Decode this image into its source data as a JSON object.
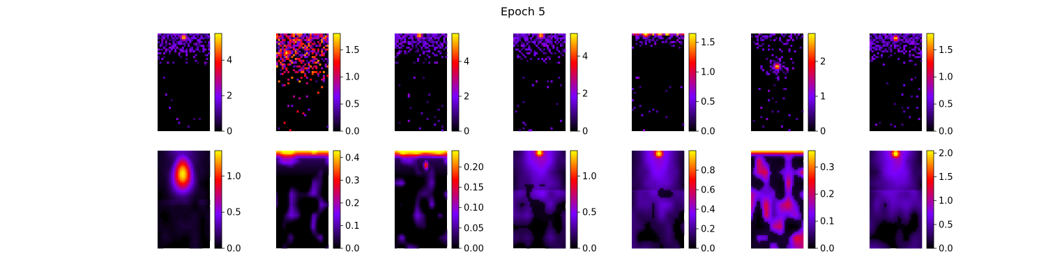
{
  "figure": {
    "title": "Epoch 5"
  },
  "colors": {
    "colormap": "gnuplot",
    "cmap_stops": [
      "#000000",
      "#7a00ff",
      "#ff0000",
      "#ffff00"
    ]
  },
  "chart_data": [
    {
      "type": "heatmap",
      "row": 1,
      "panel": 1,
      "pattern": "sparse",
      "hotspot": [
        0.5,
        0.04
      ],
      "cbar_ticks": [
        "0",
        "2",
        "4"
      ],
      "cbar_tick_values": [
        0,
        2,
        4
      ],
      "vmax": 5.5
    },
    {
      "type": "heatmap",
      "row": 1,
      "panel": 2,
      "pattern": "sparse-dense",
      "hotspot": [
        0.2,
        0.2
      ],
      "cbar_ticks": [
        "0.0",
        "0.5",
        "1.0",
        "1.5"
      ],
      "cbar_tick_values": [
        0,
        0.5,
        1.0,
        1.5
      ],
      "vmax": 1.8
    },
    {
      "type": "heatmap",
      "row": 1,
      "panel": 3,
      "pattern": "sparse",
      "hotspot": [
        0.47,
        0.02
      ],
      "cbar_ticks": [
        "0",
        "2",
        "4"
      ],
      "cbar_tick_values": [
        0,
        2,
        4
      ],
      "vmax": 5.6
    },
    {
      "type": "heatmap",
      "row": 1,
      "panel": 4,
      "pattern": "sparse",
      "hotspot": [
        0.53,
        0.02
      ],
      "cbar_ticks": [
        "0",
        "2",
        "4"
      ],
      "cbar_tick_values": [
        0,
        2,
        4
      ],
      "vmax": 5.2
    },
    {
      "type": "heatmap",
      "row": 1,
      "panel": 5,
      "pattern": "sparse-top",
      "hotspot": [
        0.27,
        0.01
      ],
      "cbar_ticks": [
        "0.0",
        "0.5",
        "1.0",
        "1.5"
      ],
      "cbar_tick_values": [
        0,
        0.5,
        1.0,
        1.5
      ],
      "vmax": 1.65
    },
    {
      "type": "heatmap",
      "row": 1,
      "panel": 6,
      "pattern": "sparse-mid",
      "hotspot": [
        0.5,
        0.34
      ],
      "cbar_ticks": [
        "0",
        "1",
        "2"
      ],
      "cbar_tick_values": [
        0,
        1,
        2
      ],
      "vmax": 2.8
    },
    {
      "type": "heatmap",
      "row": 1,
      "panel": 7,
      "pattern": "sparse",
      "hotspot": [
        0.5,
        0.05
      ],
      "cbar_ticks": [
        "0.0",
        "0.5",
        "1.0",
        "1.5"
      ],
      "cbar_tick_values": [
        0,
        0.5,
        1.0,
        1.5
      ],
      "vmax": 1.8
    },
    {
      "type": "heatmap",
      "row": 2,
      "panel": 1,
      "pattern": "plume",
      "hotspot": [
        0.48,
        0.24
      ],
      "cbar_ticks": [
        "0.0",
        "0.5",
        "1.0"
      ],
      "cbar_tick_values": [
        0,
        0.5,
        1.0
      ],
      "vmax": 1.35
    },
    {
      "type": "heatmap",
      "row": 2,
      "panel": 2,
      "pattern": "top-band",
      "hotspot": [
        0.5,
        0.0
      ],
      "cbar_ticks": [
        "0.0",
        "0.1",
        "0.2",
        "0.3",
        "0.4"
      ],
      "cbar_tick_values": [
        0,
        0.1,
        0.2,
        0.3,
        0.4
      ],
      "vmax": 0.43
    },
    {
      "type": "heatmap",
      "row": 2,
      "panel": 3,
      "pattern": "top-band",
      "hotspot": [
        0.6,
        0.15
      ],
      "cbar_ticks": [
        "0.00",
        "0.05",
        "0.10",
        "0.15",
        "0.20"
      ],
      "cbar_tick_values": [
        0,
        0.05,
        0.1,
        0.15,
        0.2
      ],
      "vmax": 0.24
    },
    {
      "type": "heatmap",
      "row": 2,
      "panel": 4,
      "pattern": "diffuse",
      "hotspot": [
        0.5,
        0.02
      ],
      "cbar_ticks": [
        "0.0",
        "0.5",
        "1.0"
      ],
      "cbar_tick_values": [
        0,
        0.5,
        1.0
      ],
      "vmax": 1.35
    },
    {
      "type": "heatmap",
      "row": 2,
      "panel": 5,
      "pattern": "diffuse",
      "hotspot": [
        0.52,
        0.03
      ],
      "cbar_ticks": [
        "0.0",
        "0.2",
        "0.4",
        "0.6",
        "0.8"
      ],
      "cbar_tick_values": [
        0,
        0.2,
        0.4,
        0.6,
        0.8
      ],
      "vmax": 1.0
    },
    {
      "type": "heatmap",
      "row": 2,
      "panel": 6,
      "pattern": "patchy",
      "hotspot": [
        0.5,
        0.0
      ],
      "cbar_ticks": [
        "0.0",
        "0.1",
        "0.2",
        "0.3"
      ],
      "cbar_tick_values": [
        0,
        0.1,
        0.2,
        0.3
      ],
      "vmax": 0.36
    },
    {
      "type": "heatmap",
      "row": 2,
      "panel": 7,
      "pattern": "diffuse",
      "hotspot": [
        0.5,
        0.03
      ],
      "cbar_ticks": [
        "0.0",
        "0.5",
        "1.0",
        "1.5",
        "2.0"
      ],
      "cbar_tick_values": [
        0,
        0.5,
        1.0,
        1.5,
        2.0
      ],
      "vmax": 2.05
    }
  ]
}
